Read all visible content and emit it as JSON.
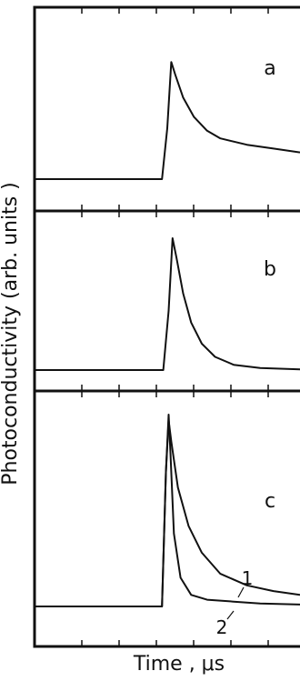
{
  "chart_data": {
    "type": "line",
    "title": "",
    "xlabel": "Time , μs",
    "ylabel": "Photoconductivity (arb. units )",
    "grid": false,
    "legend": "none",
    "xlim": [
      0,
      10
    ],
    "panels": [
      {
        "label": "a",
        "ylim": [
          0,
          1
        ],
        "series": [
          {
            "name": "",
            "x": [
              0,
              4.8,
              5.0,
              5.15,
              5.3,
              5.6,
              6.0,
              6.5,
              7.0,
              8.0,
              9.0,
              10.0
            ],
            "y": [
              0,
              0,
              0.4,
              0.92,
              0.82,
              0.64,
              0.49,
              0.38,
              0.32,
              0.27,
              0.24,
              0.21
            ]
          }
        ]
      },
      {
        "label": "b",
        "ylim": [
          0,
          1
        ],
        "series": [
          {
            "name": "",
            "x": [
              0,
              4.85,
              5.05,
              5.2,
              5.35,
              5.6,
              5.9,
              6.3,
              6.8,
              7.5,
              8.5,
              10.0
            ],
            "y": [
              0,
              0,
              0.45,
              1.0,
              0.85,
              0.58,
              0.36,
              0.2,
              0.1,
              0.04,
              0.015,
              0.005
            ]
          }
        ]
      },
      {
        "label": "c",
        "ylim": [
          0,
          1
        ],
        "series": [
          {
            "name": "1",
            "x": [
              0,
              4.8,
              4.95,
              5.05,
              5.15,
              5.4,
              5.8,
              6.3,
              7.0,
              8.0,
              9.0,
              10.0
            ],
            "y": [
              0,
              0,
              0.7,
              0.97,
              0.86,
              0.62,
              0.42,
              0.28,
              0.17,
              0.11,
              0.08,
              0.06
            ]
          },
          {
            "name": "2",
            "x": [
              0,
              4.8,
              4.95,
              5.05,
              5.12,
              5.25,
              5.5,
              5.9,
              6.5,
              7.5,
              8.5,
              10.0
            ],
            "y": [
              0,
              0,
              0.7,
              1.0,
              0.8,
              0.38,
              0.15,
              0.06,
              0.035,
              0.025,
              0.015,
              0.01
            ]
          }
        ]
      }
    ]
  }
}
